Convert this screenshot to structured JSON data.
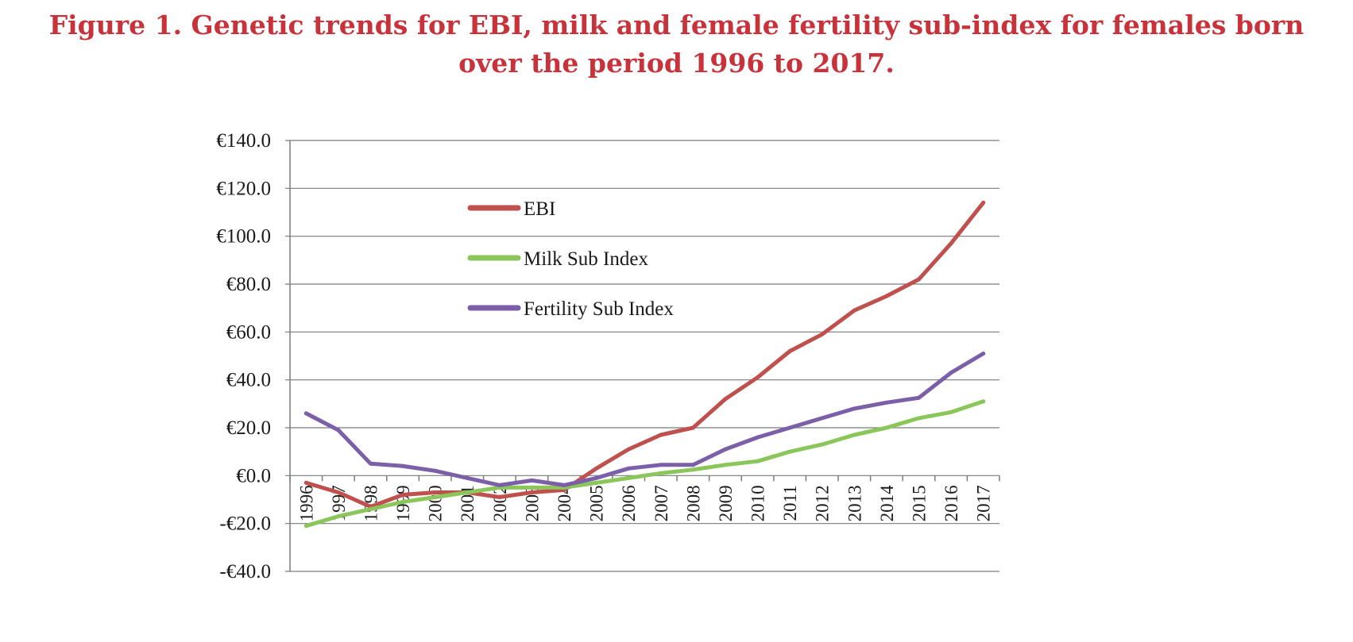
{
  "figure": {
    "title_line1": "Figure 1. Genetic trends for EBI, milk and female fertility sub-index for females born",
    "title_line2": "over the period 1996 to 2017."
  },
  "chart_data": {
    "type": "line",
    "title": "Figure 1. Genetic trends for EBI, milk and female fertility sub-index for females born over the period 1996 to 2017.",
    "xlabel": "",
    "ylabel": "",
    "categories": [
      "1996",
      "1997",
      "1998",
      "1999",
      "2000",
      "2001",
      "2002",
      "2003",
      "2004",
      "2005",
      "2006",
      "2007",
      "2008",
      "2009",
      "2010",
      "2011",
      "2012",
      "2013",
      "2014",
      "2015",
      "2016",
      "2017"
    ],
    "ylim": [
      -40,
      140
    ],
    "yticks": [
      -40,
      -20,
      0,
      20,
      40,
      60,
      80,
      100,
      120,
      140
    ],
    "ytick_labels": [
      "-€40.0",
      "-€20.0",
      "€0.0",
      "€20.0",
      "€40.0",
      "€60.0",
      "€80.0",
      "€100.0",
      "€120.0",
      "€140.0"
    ],
    "grid": true,
    "legend_position": "upper-left inside plot",
    "series": [
      {
        "name": "EBI",
        "color": "#c0504d",
        "values": [
          -3,
          -7,
          -13,
          -8,
          -7,
          -7,
          -9,
          -7,
          -6,
          3,
          11,
          17,
          20,
          32,
          41,
          52,
          59,
          69,
          75,
          82,
          97,
          114
        ]
      },
      {
        "name": "Milk Sub Index",
        "color": "#8ac65a",
        "values": [
          -21,
          -17,
          -14,
          -11,
          -9,
          -7,
          -5,
          -5,
          -5,
          -3,
          -1,
          1,
          2.5,
          4.5,
          6,
          10,
          13,
          17,
          20,
          24,
          26.5,
          31
        ]
      },
      {
        "name": "Fertility Sub Index",
        "color": "#7b5fa8",
        "values": [
          26,
          19,
          5,
          4,
          2,
          -1,
          -4,
          -2,
          -4,
          -1,
          3,
          4.5,
          4.5,
          11,
          16,
          20,
          24,
          28,
          30.5,
          32.5,
          43,
          51
        ]
      }
    ]
  }
}
